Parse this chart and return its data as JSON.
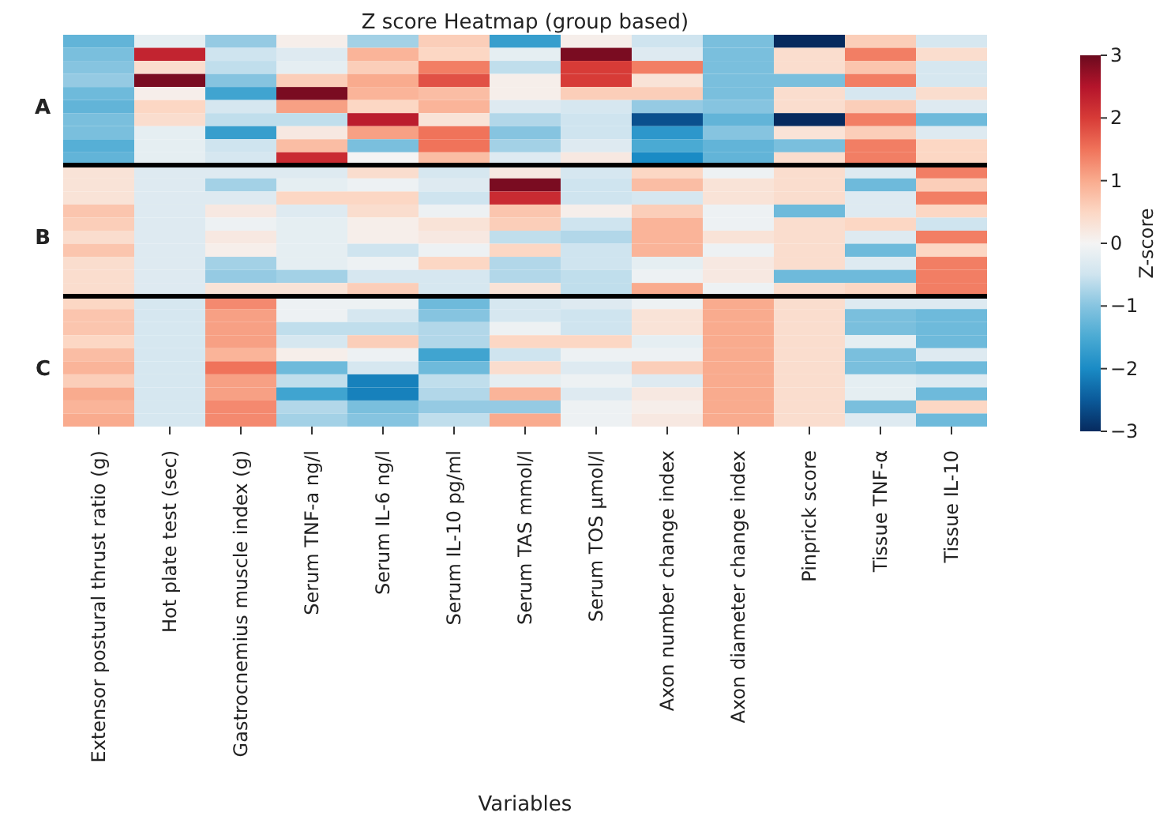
{
  "chart_data": {
    "type": "heatmap",
    "title": "Z score Heatmap (group based)",
    "xlabel": "Variables",
    "clabel": "Z-score",
    "clim": [
      -3,
      3
    ],
    "cticks": [
      {
        "value": -3,
        "label": "−3"
      },
      {
        "value": -2,
        "label": "−2"
      },
      {
        "value": -1,
        "label": "−1"
      },
      0,
      1,
      2,
      3
    ],
    "categories": [
      "Extensor postural thrust ratio (g)",
      "Hot plate test (sec)",
      "Gastrocnemius muscle index (g)",
      "Serum TNF-a ng/l",
      "Serum IL-6 ng/l",
      "Serum IL-10 pg/ml",
      "Serum TAS mmol/l",
      "Serum TOS µmol/l",
      "Axon number change index",
      "Axon diameter change index",
      "Pinprick score",
      "Tissue TNF-α",
      "Tissue IL-10"
    ],
    "y_categories": [
      null,
      null,
      null,
      null,
      null,
      "A",
      null,
      null,
      null,
      null,
      null,
      null,
      null,
      null,
      null,
      "B",
      null,
      null,
      null,
      null,
      null,
      null,
      null,
      null,
      null,
      "C",
      null,
      null,
      null,
      null
    ],
    "cells": [
      [
        -1.3,
        -0.2,
        -0.9,
        0.1,
        -0.8,
        0.6,
        -1.7,
        0.1,
        -0.5,
        -1.1,
        -3.0,
        0.6,
        -0.4
      ],
      [
        -1.1,
        2.3,
        -0.5,
        -0.3,
        0.9,
        0.5,
        -0.2,
        2.9,
        -0.3,
        -1.1,
        0.4,
        1.4,
        0.4
      ],
      [
        -1.0,
        0.4,
        -0.6,
        -0.2,
        0.6,
        1.4,
        -0.6,
        2.0,
        1.4,
        -1.1,
        0.4,
        0.7,
        -0.4
      ],
      [
        -0.9,
        2.9,
        -1.0,
        0.6,
        1.0,
        1.8,
        0.1,
        2.0,
        0.3,
        -1.1,
        -1.1,
        1.4,
        -0.4
      ],
      [
        -1.2,
        0.1,
        -1.6,
        2.9,
        0.9,
        0.8,
        0.1,
        0.6,
        0.6,
        -1.1,
        0.4,
        -0.4,
        0.4
      ],
      [
        -1.3,
        0.5,
        -0.4,
        1.1,
        0.5,
        0.9,
        -0.3,
        -0.4,
        -0.9,
        -1.0,
        0.4,
        0.6,
        -0.3
      ],
      [
        -1.1,
        0.4,
        -0.6,
        -0.6,
        2.4,
        0.3,
        -0.7,
        -0.5,
        -2.6,
        -1.3,
        -3.0,
        1.4,
        -1.2
      ],
      [
        -1.1,
        -0.2,
        -1.7,
        0.2,
        1.1,
        1.5,
        -1.0,
        -0.5,
        -1.8,
        -1.0,
        0.3,
        0.6,
        -0.3
      ],
      [
        -1.4,
        -0.2,
        -0.5,
        0.8,
        -1.1,
        1.5,
        -0.8,
        -0.3,
        -1.5,
        -1.3,
        -1.1,
        1.4,
        0.5
      ],
      [
        -1.3,
        -0.2,
        -0.4,
        2.2,
        0.0,
        0.8,
        -0.3,
        0.2,
        -2.0,
        -1.3,
        0.4,
        1.4,
        0.5
      ],
      [
        0.3,
        -0.3,
        -0.3,
        -0.3,
        0.4,
        -0.4,
        0.2,
        -0.4,
        0.5,
        -0.1,
        0.4,
        -0.3,
        1.4
      ],
      [
        0.3,
        -0.3,
        -0.8,
        -0.2,
        -0.1,
        -0.3,
        2.9,
        -0.5,
        0.8,
        0.3,
        0.4,
        -1.2,
        0.6
      ],
      [
        0.3,
        -0.3,
        -0.3,
        0.5,
        0.5,
        -0.5,
        2.2,
        -0.5,
        -0.4,
        0.3,
        0.4,
        -0.3,
        1.4
      ],
      [
        0.7,
        -0.3,
        0.2,
        -0.3,
        0.4,
        -0.1,
        0.7,
        0.1,
        0.6,
        -0.1,
        -1.2,
        -0.3,
        0.5
      ],
      [
        0.6,
        -0.3,
        -0.1,
        -0.2,
        0.1,
        0.3,
        0.6,
        -0.5,
        0.9,
        -0.1,
        0.4,
        0.5,
        -0.5
      ],
      [
        0.4,
        -0.3,
        0.2,
        -0.2,
        0.1,
        0.2,
        -0.6,
        -0.7,
        0.9,
        0.3,
        0.4,
        -0.3,
        1.4
      ],
      [
        0.7,
        -0.3,
        0.1,
        -0.2,
        -0.5,
        -0.1,
        0.5,
        -0.5,
        0.9,
        -0.1,
        0.4,
        -1.2,
        0.5
      ],
      [
        0.4,
        -0.3,
        -0.8,
        -0.2,
        -0.1,
        0.5,
        -0.7,
        -0.5,
        -0.2,
        0.2,
        0.4,
        -0.3,
        1.4
      ],
      [
        0.4,
        -0.3,
        -0.9,
        -0.8,
        -0.4,
        -0.4,
        -0.7,
        -0.6,
        -0.1,
        0.2,
        -1.2,
        -1.2,
        1.4
      ],
      [
        0.4,
        -0.3,
        0.3,
        0.3,
        0.6,
        -0.4,
        0.3,
        -0.6,
        1.0,
        -0.1,
        0.4,
        0.5,
        1.4
      ],
      [
        0.5,
        -0.4,
        1.3,
        -0.1,
        -0.1,
        -1.2,
        -0.4,
        -0.3,
        -0.1,
        1.0,
        0.4,
        -0.3,
        -0.3
      ],
      [
        0.7,
        -0.4,
        1.1,
        -0.1,
        -0.4,
        -1.0,
        -0.4,
        -0.5,
        0.3,
        1.0,
        0.4,
        -1.1,
        -1.2
      ],
      [
        0.7,
        -0.4,
        1.1,
        -0.6,
        -0.6,
        -0.7,
        -0.1,
        -0.5,
        0.3,
        1.0,
        0.4,
        -1.1,
        -1.2
      ],
      [
        0.5,
        -0.4,
        1.1,
        -0.4,
        0.6,
        -0.7,
        0.5,
        0.5,
        -0.2,
        1.0,
        0.4,
        -0.2,
        -1.2
      ],
      [
        0.8,
        -0.4,
        0.9,
        0.1,
        -0.1,
        -1.6,
        -0.5,
        -0.1,
        -0.1,
        1.0,
        0.4,
        -1.1,
        -0.3
      ],
      [
        0.9,
        -0.4,
        1.5,
        -1.2,
        -0.4,
        -1.2,
        0.4,
        -0.3,
        0.6,
        1.0,
        0.4,
        -1.1,
        -1.2
      ],
      [
        0.6,
        -0.4,
        1.1,
        -0.6,
        -2.1,
        -0.6,
        -0.2,
        -0.1,
        -0.3,
        1.0,
        0.4,
        -0.2,
        -0.3
      ],
      [
        1.0,
        -0.4,
        1.1,
        -1.6,
        -2.1,
        -0.7,
        0.9,
        -0.3,
        0.2,
        1.0,
        0.4,
        -0.2,
        -1.2
      ],
      [
        0.9,
        -0.4,
        1.3,
        -0.7,
        -1.1,
        -0.9,
        -0.9,
        -0.1,
        0.1,
        1.0,
        0.4,
        -1.1,
        0.5
      ],
      [
        1.0,
        -0.4,
        1.3,
        -0.8,
        -1.0,
        -0.6,
        1.0,
        -0.1,
        0.2,
        1.0,
        0.4,
        -0.3,
        -1.2
      ]
    ]
  }
}
